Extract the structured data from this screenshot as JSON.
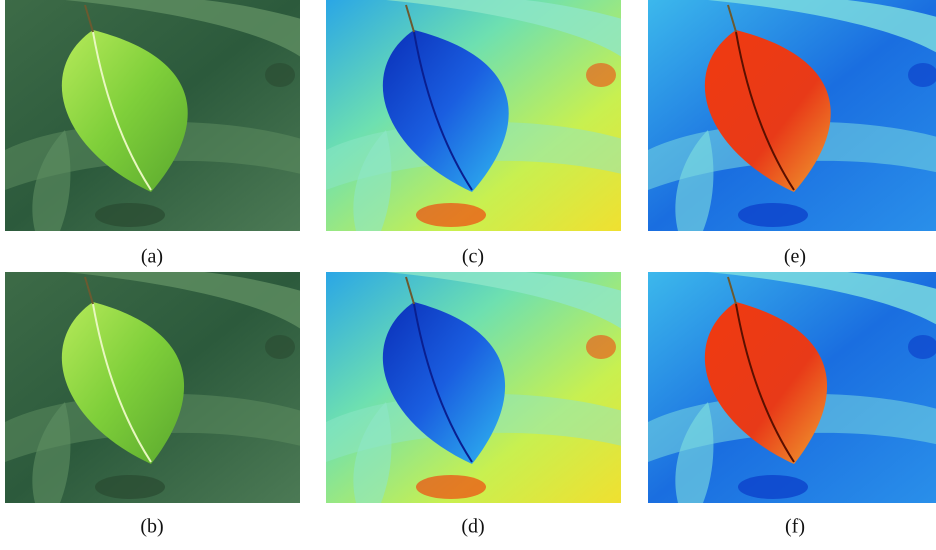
{
  "figure": {
    "captions": [
      [
        "(a)",
        "(c)",
        "(e)"
      ],
      [
        "(b)",
        "(d)",
        "(f)"
      ]
    ]
  }
}
